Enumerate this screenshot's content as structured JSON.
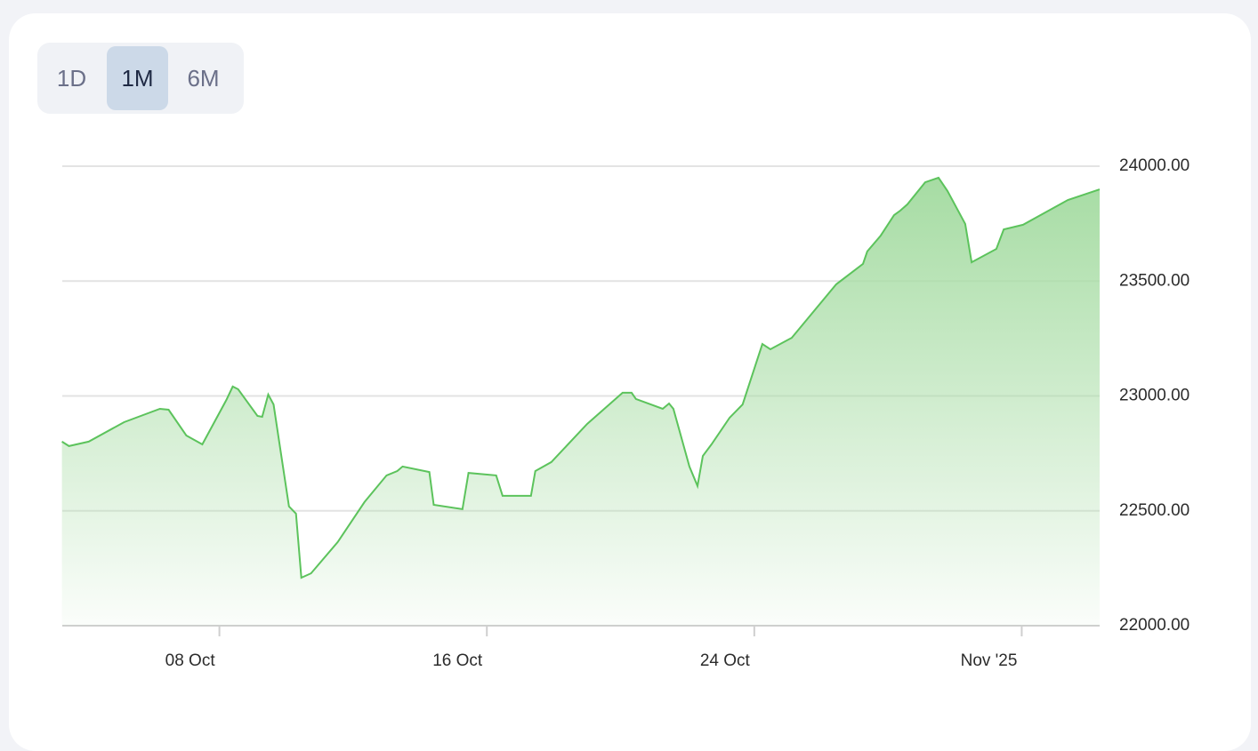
{
  "controls": {
    "buttons": [
      "1D",
      "1M",
      "6M"
    ],
    "active": "1M"
  },
  "chart_data": {
    "type": "line",
    "color": "#5cc35c",
    "fill": true,
    "grid": true,
    "x": [
      3.29,
      3.5,
      4.09,
      5.15,
      6.22,
      6.48,
      7.01,
      7.49,
      8.21,
      8.4,
      8.56,
      9.14,
      9.28,
      9.46,
      9.62,
      10.08,
      10.29,
      10.45,
      10.74,
      11.54,
      12.34,
      13.0,
      13.32,
      13.48,
      14.28,
      14.41,
      15.27,
      15.45,
      16.28,
      16.47,
      17.32,
      17.45,
      17.93,
      19.0,
      20.06,
      20.33,
      20.46,
      21.26,
      21.45,
      21.58,
      22.06,
      22.3,
      22.46,
      22.72,
      23.26,
      23.65,
      24.24,
      24.48,
      25.12,
      26.45,
      27.25,
      27.38,
      27.78,
      28.18,
      28.37,
      28.58,
      29.11,
      29.51,
      29.78,
      30.31,
      30.5,
      31.24,
      31.46,
      32.04,
      33.38,
      34.33
    ],
    "values": [
      22801,
      22782,
      22801,
      22886,
      22944,
      22940,
      22828,
      22789,
      22983,
      23041,
      23029,
      22913,
      22909,
      23006,
      22963,
      22519,
      22488,
      22209,
      22228,
      22364,
      22538,
      22654,
      22673,
      22693,
      22669,
      22526,
      22507,
      22665,
      22654,
      22565,
      22565,
      22673,
      22712,
      22878,
      23014,
      23014,
      22987,
      22944,
      22967,
      22944,
      22693,
      22608,
      22739,
      22789,
      22905,
      22963,
      23226,
      23203,
      23253,
      23486,
      23575,
      23629,
      23698,
      23787,
      23807,
      23834,
      23930,
      23950,
      23892,
      23749,
      23582,
      23640,
      23725,
      23745,
      23853,
      23899
    ],
    "xlim": [
      3.3,
      34.33
    ],
    "xticks": [
      {
        "value": 8,
        "label": "08 Oct"
      },
      {
        "value": 16,
        "label": "16 Oct"
      },
      {
        "value": 24,
        "label": "24 Oct"
      },
      {
        "value": 32,
        "label": "Nov '25"
      }
    ],
    "ylim": [
      22000,
      24000
    ],
    "yticks": [
      {
        "value": 22000,
        "label": "22000.00"
      },
      {
        "value": 22500,
        "label": "22500.00"
      },
      {
        "value": 23000,
        "label": "23000.00"
      },
      {
        "value": 23500,
        "label": "23500.00"
      },
      {
        "value": 24000,
        "label": "24000.00"
      }
    ]
  }
}
